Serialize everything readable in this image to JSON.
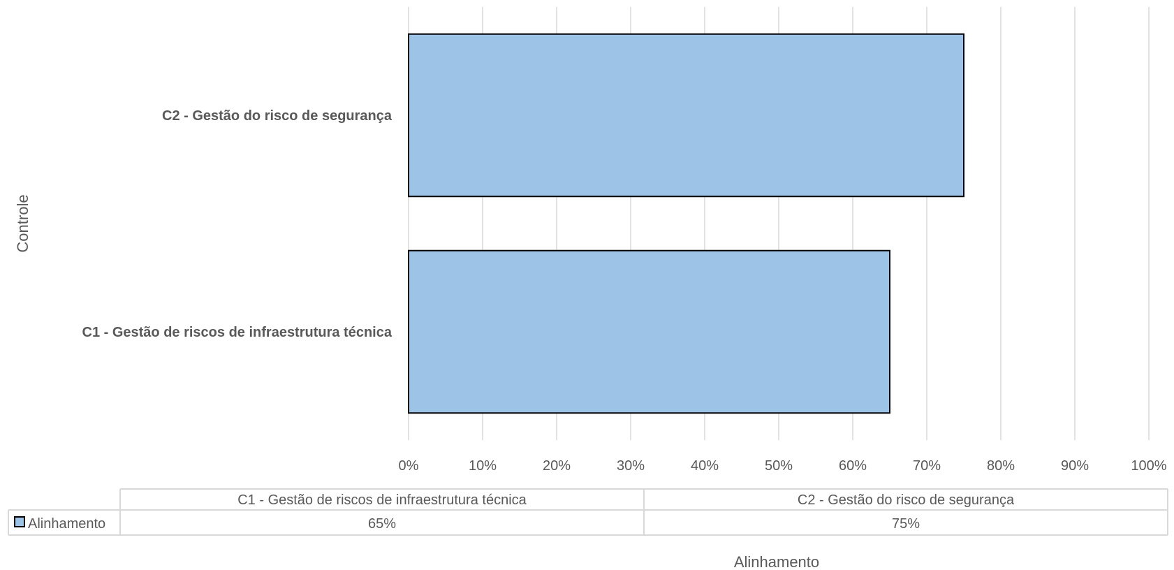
{
  "chart_data": {
    "type": "bar",
    "orientation": "horizontal",
    "categories": [
      "C1 - Gestão de riscos de infraestrutura técnica",
      "C2 - Gestão do risco de segurança"
    ],
    "series": [
      {
        "name": "Alinhamento",
        "values": [
          0.65,
          0.75
        ],
        "color": "#9dc3e6",
        "border": "#000000"
      }
    ],
    "xlabel": "Alinhamento",
    "ylabel": "Controle",
    "xlim": [
      0,
      1
    ],
    "xticks": [
      0,
      0.1,
      0.2,
      0.3,
      0.4,
      0.5,
      0.6,
      0.7,
      0.8,
      0.9,
      1.0
    ],
    "xtick_labels": [
      "0%",
      "10%",
      "20%",
      "30%",
      "40%",
      "50%",
      "60%",
      "70%",
      "80%",
      "90%",
      "100%"
    ],
    "grid": true,
    "data_table": {
      "headers": [
        "C1 - Gestão de riscos de infraestrutura técnica",
        "C2 - Gestão do risco de segurança"
      ],
      "rows": [
        {
          "label": "Alinhamento",
          "values": [
            "65%",
            "75%"
          ]
        }
      ]
    }
  }
}
